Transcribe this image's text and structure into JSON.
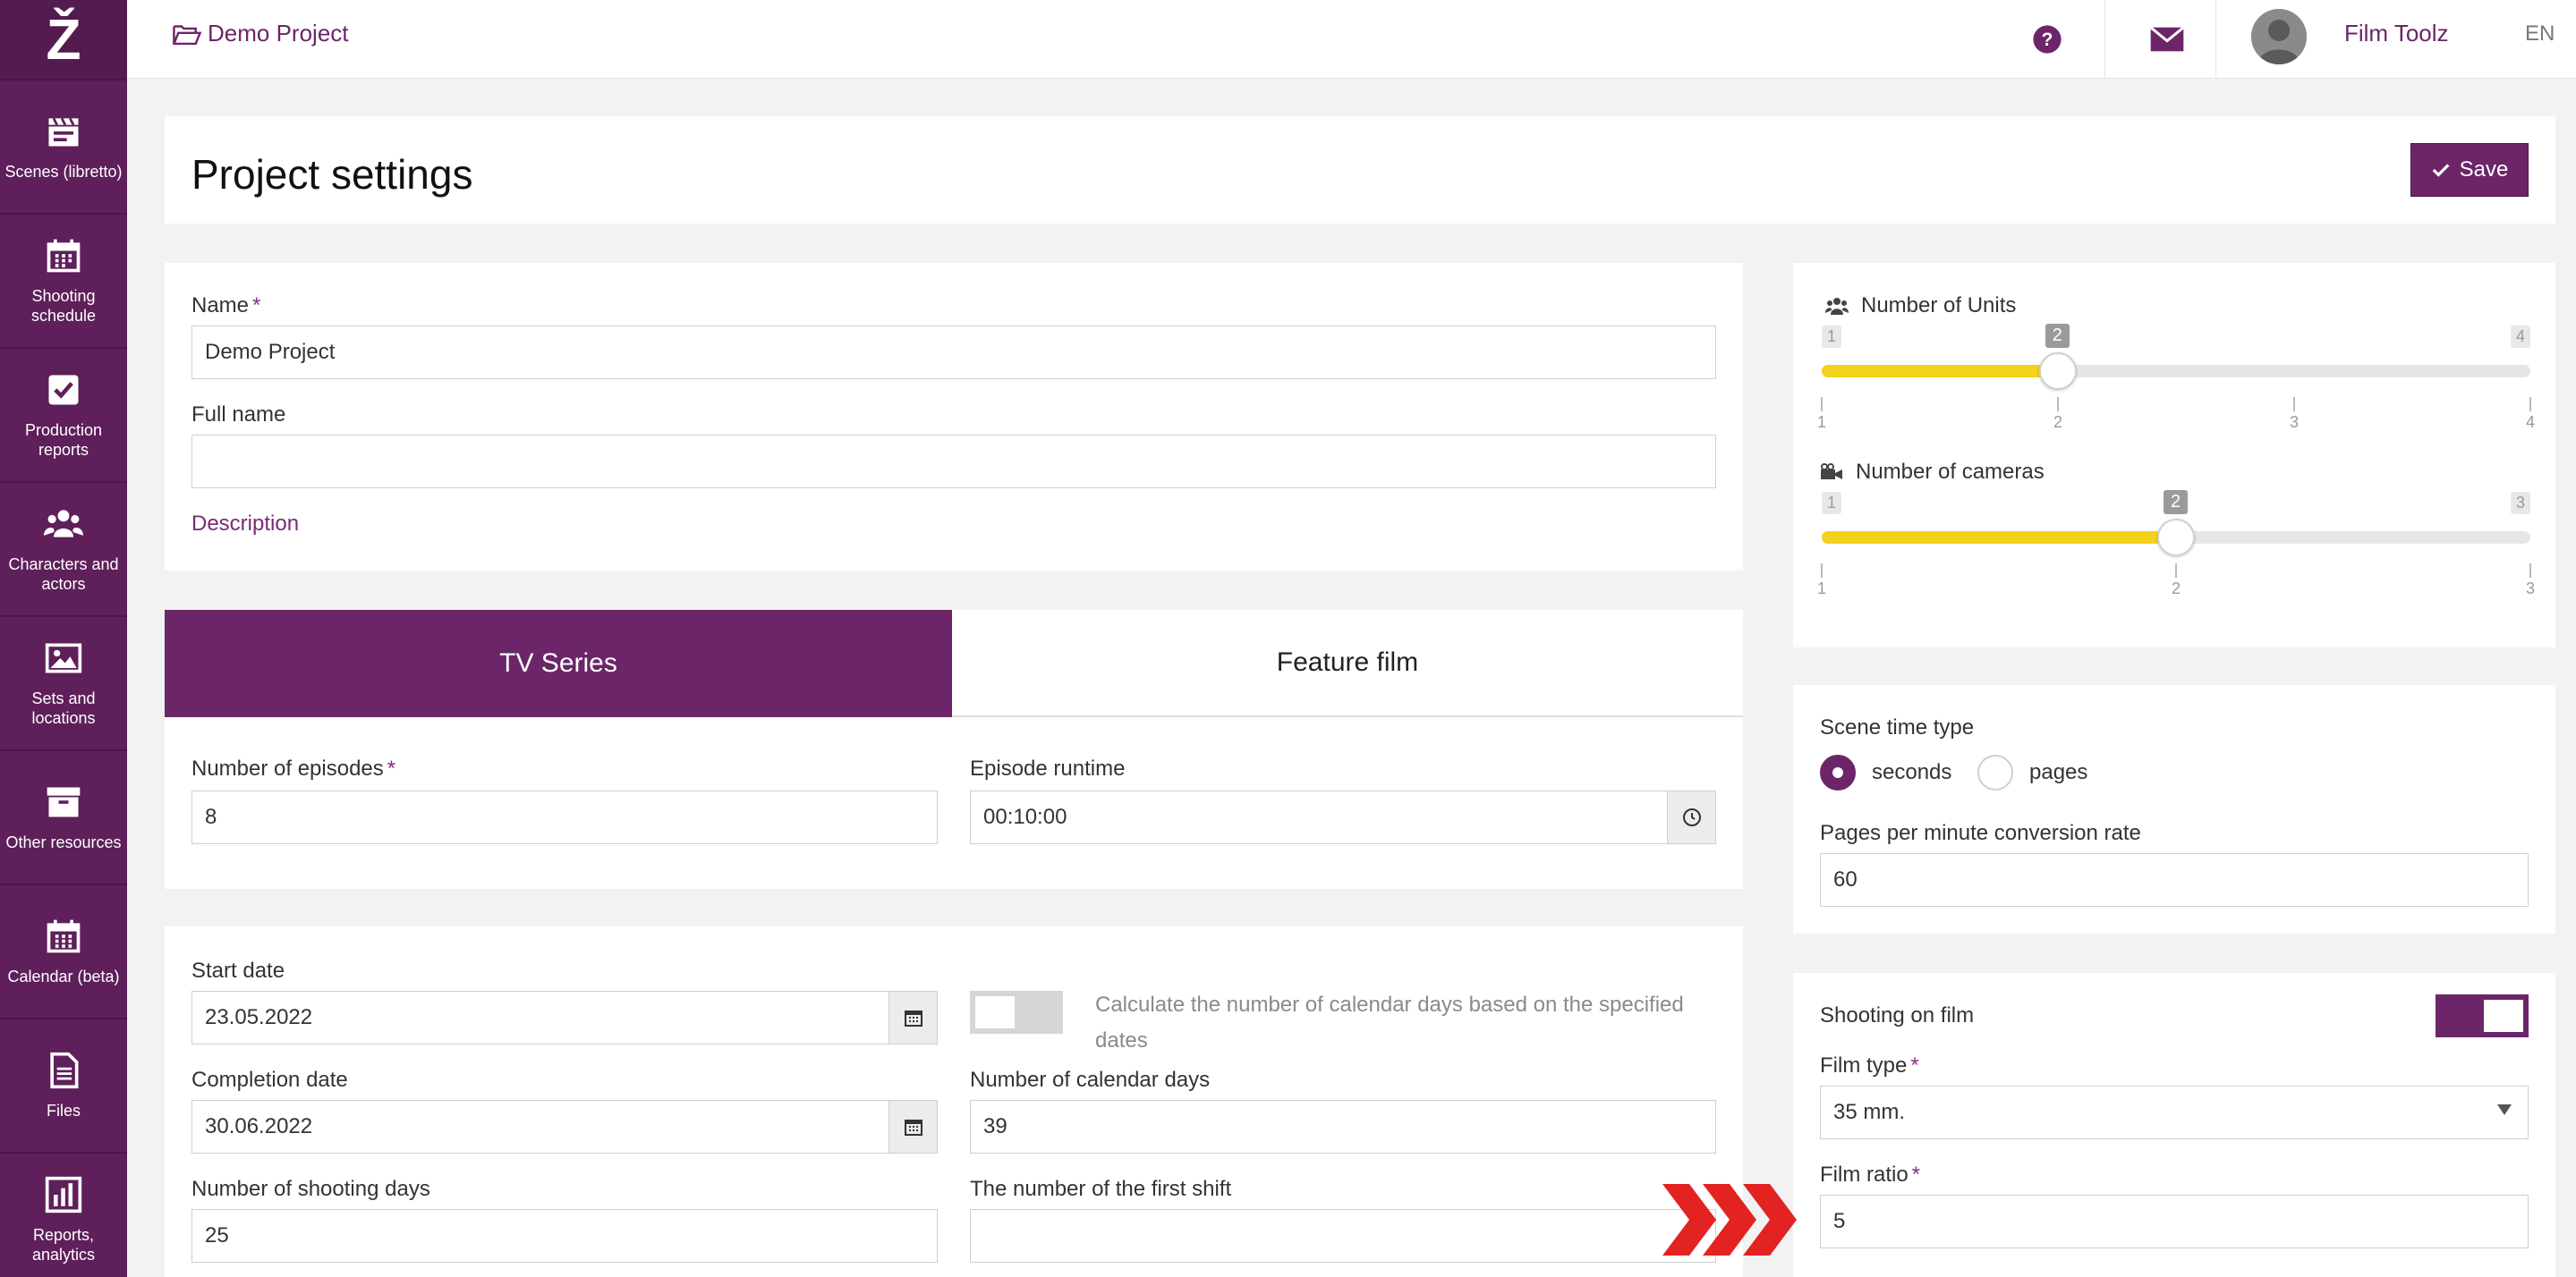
{
  "sidebar": {
    "items": [
      {
        "label": "Scenes (libretto)",
        "icon": "clapperboard-icon"
      },
      {
        "label": "Shooting schedule",
        "icon": "calendar-grid-icon"
      },
      {
        "label": "Production reports",
        "icon": "checkbox-icon"
      },
      {
        "label": "Characters and actors",
        "icon": "people-icon"
      },
      {
        "label": "Sets and locations",
        "icon": "image-icon"
      },
      {
        "label": "Other resources",
        "icon": "archive-box-icon"
      },
      {
        "label": "Calendar (beta)",
        "icon": "calendar-icon"
      },
      {
        "label": "Files",
        "icon": "file-icon"
      },
      {
        "label": "Reports, analytics",
        "icon": "bar-chart-icon"
      }
    ]
  },
  "topbar": {
    "breadcrumb": "Demo Project",
    "user_name": "Film Toolz",
    "language": "EN"
  },
  "header": {
    "title": "Project settings",
    "save_label": "Save"
  },
  "general": {
    "name_label": "Name",
    "name_value": "Demo Project",
    "full_name_label": "Full name",
    "full_name_value": "",
    "description_link": "Description"
  },
  "tabs": {
    "tv_series": "TV Series",
    "feature_film": "Feature film"
  },
  "episodes": {
    "count_label": "Number of episodes",
    "count_value": "8",
    "runtime_label": "Episode runtime",
    "runtime_value": "00:10:00"
  },
  "dates": {
    "start_label": "Start date",
    "start_value": "23.05.2022",
    "completion_label": "Completion date",
    "completion_value": "30.06.2022",
    "calc_note_line1": "Calculate the number of calendar days based on the specified",
    "calc_note_line2": "dates",
    "calendar_days_label": "Number of calendar days",
    "calendar_days_value": "39",
    "shooting_days_label": "Number of shooting days",
    "shooting_days_value": "25",
    "first_shift_label": "The number of the first shift",
    "first_shift_value": ""
  },
  "units": {
    "label": "Number of Units",
    "min": "1",
    "max": "4",
    "current": "2",
    "value_fraction": 0.333,
    "ticks": [
      "1",
      "2",
      "3",
      "4"
    ]
  },
  "cameras": {
    "label": "Number of cameras",
    "min": "1",
    "max": "3",
    "current": "2",
    "value_fraction": 0.5,
    "ticks": [
      "1",
      "2",
      "3"
    ]
  },
  "scene_time": {
    "label": "Scene time type",
    "option_seconds": "seconds",
    "option_pages": "pages",
    "selected": "seconds",
    "conversion_label": "Pages per minute conversion rate",
    "conversion_value": "60"
  },
  "film": {
    "shooting_label": "Shooting on film",
    "shooting_enabled": true,
    "type_label": "Film type",
    "type_value": "35 mm.",
    "ratio_label": "Film ratio",
    "ratio_value": "5"
  },
  "colors": {
    "brand": "#6b2568",
    "slider_fill": "#f2d21b",
    "arrow": "#e32222"
  }
}
